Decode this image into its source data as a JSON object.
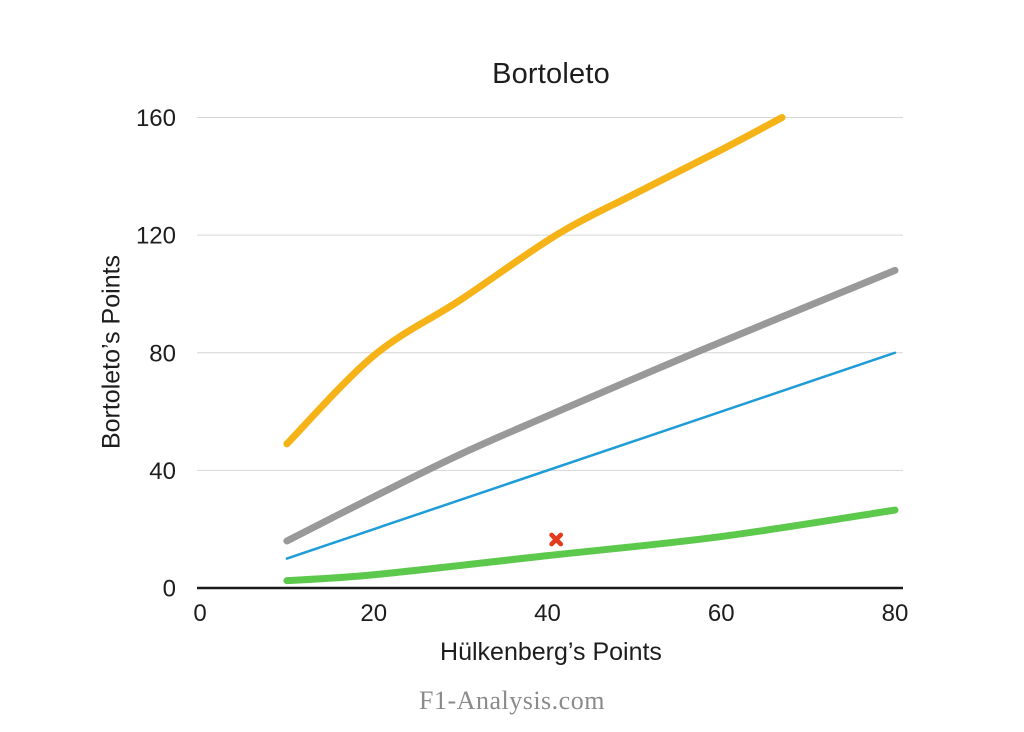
{
  "page": {
    "background": "#FFFFFF"
  },
  "header": {
    "title": "Bortoleto"
  },
  "footer": {
    "brand": "F1-Analysis.com",
    "color": "#8A8A8A"
  },
  "chart_data": {
    "type": "line",
    "title": "Bortoleto",
    "xlabel": "Hülkenberg’s Points",
    "ylabel": "Bortoleto’s Points",
    "xlim": [
      0,
      80
    ],
    "ylim": [
      0,
      160
    ],
    "x_ticks": [
      0,
      20,
      40,
      60,
      80
    ],
    "y_ticks": [
      0,
      40,
      80,
      120,
      160
    ],
    "grid": "horizontal-only",
    "legend": "none",
    "colors": {
      "gridline": "#D6D6D6",
      "axis": "#1a1a1a",
      "yellow_curve": "#F5B317",
      "gray_curve": "#999999",
      "blue_line": "#1E9CD7",
      "green_curve": "#5CC94C",
      "marker": "#E63A1F"
    },
    "series": [
      {
        "name": "yellow-upper-curve",
        "color": "#F5B317",
        "stroke_width": 7,
        "points": [
          [
            10,
            49
          ],
          [
            20,
            79
          ],
          [
            30,
            98
          ],
          [
            41,
            120
          ],
          [
            50,
            134
          ],
          [
            60,
            149
          ],
          [
            67,
            160
          ]
        ]
      },
      {
        "name": "gray-middle-curve",
        "color": "#999999",
        "stroke_width": 7,
        "points": [
          [
            10,
            16
          ],
          [
            20,
            31
          ],
          [
            30,
            45.5
          ],
          [
            40,
            58.5
          ],
          [
            57,
            80
          ],
          [
            80,
            108
          ]
        ]
      },
      {
        "name": "blue-parity-line",
        "color": "#1E9CD7",
        "stroke_width": 2.5,
        "points": [
          [
            10,
            10
          ],
          [
            80,
            80
          ]
        ]
      },
      {
        "name": "green-lower-curve",
        "color": "#5CC94C",
        "stroke_width": 7,
        "points": [
          [
            10,
            2.5
          ],
          [
            20,
            4.5
          ],
          [
            40,
            11
          ],
          [
            60,
            17.5
          ],
          [
            80,
            26.5
          ]
        ]
      }
    ],
    "marker": {
      "name": "current-points-marker",
      "shape": "x",
      "color": "#E63A1F",
      "x": 41,
      "y": 16.5
    }
  }
}
